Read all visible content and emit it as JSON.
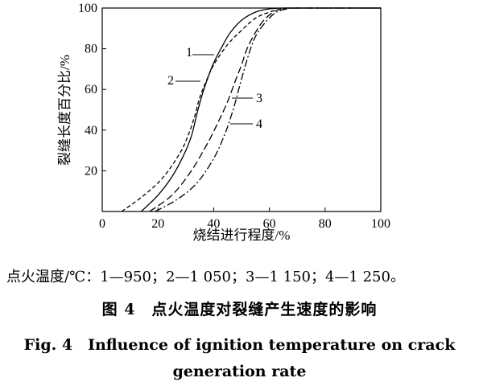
{
  "chart_data": {
    "type": "line",
    "title": "",
    "xlabel": "烧结进行程度/%",
    "ylabel": "裂缝长度百分比/%",
    "xlim": [
      0,
      100
    ],
    "ylim": [
      0,
      100
    ],
    "x_ticks": [
      0,
      20,
      40,
      60,
      80,
      100
    ],
    "y_ticks": [
      20,
      40,
      60,
      80,
      100
    ],
    "grid": false,
    "legend": "inline-labels",
    "series": [
      {
        "name": "1",
        "style": "solid",
        "x": [
          14,
          20,
          25,
          29,
          32,
          34,
          36,
          38,
          40,
          43,
          46,
          50,
          55,
          60,
          65,
          70,
          100
        ],
        "y": [
          0,
          8,
          17,
          27,
          37,
          48,
          58,
          66,
          73,
          81,
          88,
          94,
          98,
          99.6,
          100,
          100,
          100
        ]
      },
      {
        "name": "2",
        "style": "dashed",
        "x": [
          7,
          15,
          22,
          28,
          31,
          33,
          35,
          37,
          40,
          45,
          50,
          55,
          60,
          65,
          70,
          100
        ],
        "y": [
          0,
          8,
          17,
          29,
          38,
          46,
          56,
          63,
          72,
          82,
          89,
          95,
          98,
          99.6,
          100,
          100
        ]
      },
      {
        "name": "3",
        "style": "long-dash",
        "x": [
          17,
          25,
          32,
          38,
          42,
          45,
          48,
          50,
          52,
          55,
          58,
          62,
          66,
          70,
          100
        ],
        "y": [
          0,
          8,
          20,
          34,
          45,
          54,
          65,
          72,
          80,
          88,
          94,
          98.5,
          100,
          100,
          100
        ]
      },
      {
        "name": "4",
        "style": "dash-dot",
        "x": [
          19,
          27,
          34,
          40,
          44,
          47,
          49,
          51,
          53,
          55,
          58,
          62,
          66,
          70,
          100
        ],
        "y": [
          0,
          6,
          14,
          26,
          38,
          50,
          60,
          70,
          79,
          86,
          92,
          97.5,
          99.5,
          100,
          100
        ]
      }
    ],
    "annotations": [
      "1",
      "2",
      "3",
      "4"
    ]
  },
  "legend_note": "点火温度/℃：1—950；2—1 050；3—1 150；4—1 250。",
  "caption_zh": "图 4　点火温度对裂缝产生速度的影响",
  "caption_en_line1": "Fig. 4　Influence of ignition temperature on crack",
  "caption_en_line2": "generation rate"
}
